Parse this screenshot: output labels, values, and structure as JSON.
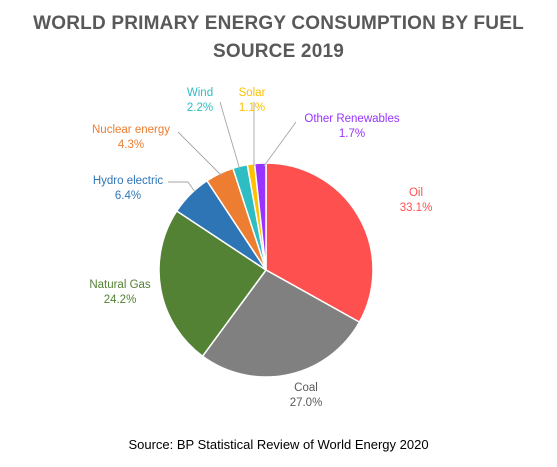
{
  "chart_data": {
    "type": "pie",
    "title_lines": [
      "WORLD PRIMARY ENERGY CONSUMPTION BY FUEL",
      "SOURCE 2019"
    ],
    "source": "Source: BP Statistical Review of World Energy 2020",
    "unit": "%",
    "slices": [
      {
        "name": "Oil",
        "value": 33.1,
        "label": "33.1%",
        "color": "#FF5050"
      },
      {
        "name": "Coal",
        "value": 27.0,
        "label": "27.0%",
        "color": "#808080"
      },
      {
        "name": "Natural Gas",
        "value": 24.2,
        "label": "24.2%",
        "color": "#548235"
      },
      {
        "name": "Hydro electric",
        "value": 6.4,
        "label": "6.4%",
        "color": "#2E75B6"
      },
      {
        "name": "Nuclear energy",
        "value": 4.3,
        "label": "4.3%",
        "color": "#ED7D31"
      },
      {
        "name": "Wind",
        "value": 2.2,
        "label": "2.2%",
        "color": "#2DBDC2"
      },
      {
        "name": "Solar",
        "value": 1.1,
        "label": "1.1%",
        "color": "#FFC000"
      },
      {
        "name": "Other Renewables",
        "value": 1.7,
        "label": "1.7%",
        "color": "#9933FF"
      }
    ]
  }
}
